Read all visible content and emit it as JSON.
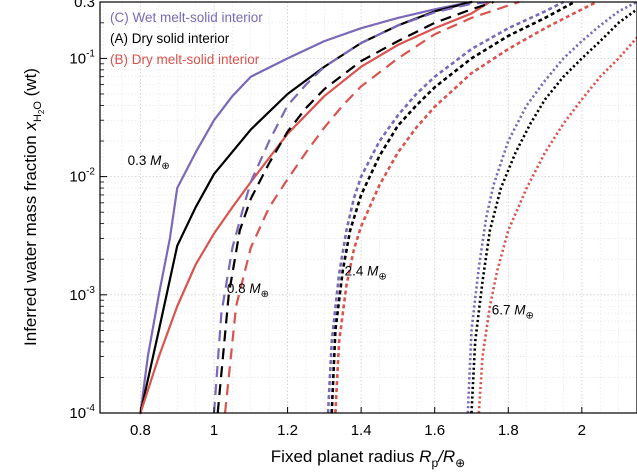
{
  "chart_data": {
    "type": "line",
    "title": "",
    "xlabel": {
      "prefix": "Fixed planet radius ",
      "sym": "R",
      "sub": "p",
      "post": "/R",
      "sub2": "⊕"
    },
    "ylabel": {
      "prefix": "Inferred water mass fraction ",
      "sym": "x",
      "sub": "H",
      "sub_digit": "2",
      "sub_tail": "O",
      "post": " (wt)"
    },
    "xlim": [
      0.69,
      2.15
    ],
    "ylim": [
      0.0001,
      0.3
    ],
    "yscale": "log",
    "grid": true,
    "xticks": [
      {
        "v": 0.8,
        "label": "0.8"
      },
      {
        "v": 1.0,
        "label": "1"
      },
      {
        "v": 1.2,
        "label": "1.2"
      },
      {
        "v": 1.4,
        "label": "1.4"
      },
      {
        "v": 1.6,
        "label": "1.6"
      },
      {
        "v": 1.8,
        "label": "1.8"
      },
      {
        "v": 2.0,
        "label": "2"
      }
    ],
    "yticks": [
      {
        "v": 0.0001,
        "base": "10",
        "exp": "-4"
      },
      {
        "v": 0.001,
        "base": "10",
        "exp": "-3"
      },
      {
        "v": 0.01,
        "base": "10",
        "exp": "-2"
      },
      {
        "v": 0.1,
        "base": "10",
        "exp": "-1"
      },
      {
        "v": 0.3,
        "base": "0.3",
        "exp": ""
      }
    ],
    "legend": {
      "placement": "top-left",
      "entries": [
        {
          "label": "(C) Wet melt-solid interior",
          "color": "#7b68b8"
        },
        {
          "label": "(A) Dry solid interior",
          "color": "#000000"
        },
        {
          "label": "(B) Dry melt-solid interior",
          "color": "#d9544f"
        }
      ]
    },
    "annotations": [
      {
        "num": "0.3 ",
        "sym": "M",
        "sub": "⊕",
        "x": 0.765,
        "y": 0.0125
      },
      {
        "num": "0.8 ",
        "sym": "M",
        "sub": "⊕",
        "x": 1.035,
        "y": 0.00104
      },
      {
        "num": "2.4 ",
        "sym": "M",
        "sub": "⊕",
        "x": 1.355,
        "y": 0.00145
      },
      {
        "num": "6.7 ",
        "sym": "M",
        "sub": "⊕",
        "x": 1.755,
        "y": 0.00068
      }
    ],
    "series": [
      {
        "interior": "wet",
        "mass": "0.3",
        "style": "solid",
        "color": "#7b68b8",
        "x": [
          0.8,
          0.82,
          0.85,
          0.88,
          0.9,
          0.95,
          1.0,
          1.05,
          1.1,
          1.2,
          1.3,
          1.4,
          1.5,
          1.6,
          1.65,
          1.7
        ],
        "y": [
          0.0001,
          0.0003,
          0.001,
          0.003,
          0.008,
          0.016,
          0.03,
          0.048,
          0.07,
          0.1,
          0.14,
          0.18,
          0.22,
          0.26,
          0.28,
          0.3
        ]
      },
      {
        "interior": "dry solid",
        "mass": "0.3",
        "style": "solid",
        "color": "#000000",
        "x": [
          0.8,
          0.85,
          0.9,
          0.95,
          1.0,
          1.1,
          1.2,
          1.3,
          1.4,
          1.5,
          1.6,
          1.7
        ],
        "y": [
          0.0001,
          0.0005,
          0.0026,
          0.0055,
          0.0105,
          0.025,
          0.05,
          0.085,
          0.135,
          0.19,
          0.25,
          0.3
        ]
      },
      {
        "interior": "dry melt-solid",
        "mass": "0.3",
        "style": "solid",
        "color": "#d9544f",
        "x": [
          0.8,
          0.85,
          0.9,
          0.95,
          1.0,
          1.05,
          1.1,
          1.2,
          1.3,
          1.4,
          1.5,
          1.6,
          1.7,
          1.75
        ],
        "y": [
          0.0001,
          0.0003,
          0.0008,
          0.0018,
          0.0033,
          0.0055,
          0.009,
          0.023,
          0.048,
          0.085,
          0.13,
          0.18,
          0.24,
          0.3
        ]
      },
      {
        "interior": "wet",
        "mass": "0.8",
        "style": "dashed",
        "color": "#7b68b8",
        "x": [
          1.0,
          1.02,
          1.05,
          1.08,
          1.1,
          1.15,
          1.2,
          1.25,
          1.3,
          1.4,
          1.5,
          1.6,
          1.7,
          1.75
        ],
        "y": [
          0.0001,
          0.0007,
          0.0025,
          0.0055,
          0.009,
          0.02,
          0.04,
          0.06,
          0.085,
          0.135,
          0.19,
          0.245,
          0.29,
          0.3
        ]
      },
      {
        "interior": "dry solid",
        "mass": "0.8",
        "style": "dashed",
        "color": "#000000",
        "x": [
          1.01,
          1.04,
          1.07,
          1.1,
          1.15,
          1.2,
          1.25,
          1.3,
          1.4,
          1.5,
          1.6,
          1.7,
          1.76
        ],
        "y": [
          0.0001,
          0.001,
          0.0035,
          0.0065,
          0.013,
          0.024,
          0.038,
          0.055,
          0.095,
          0.14,
          0.2,
          0.26,
          0.3
        ]
      },
      {
        "interior": "dry melt-solid",
        "mass": "0.8",
        "style": "dashed",
        "color": "#d9544f",
        "x": [
          1.03,
          1.06,
          1.1,
          1.15,
          1.2,
          1.25,
          1.3,
          1.35,
          1.4,
          1.5,
          1.6,
          1.7,
          1.8,
          1.83
        ],
        "y": [
          0.0001,
          0.0008,
          0.0025,
          0.0055,
          0.0095,
          0.016,
          0.026,
          0.04,
          0.058,
          0.1,
          0.16,
          0.22,
          0.28,
          0.3
        ]
      },
      {
        "interior": "wet",
        "mass": "2.4",
        "style": "dotted",
        "color": "#7b68b8",
        "x": [
          1.31,
          1.32,
          1.34,
          1.36,
          1.38,
          1.4,
          1.45,
          1.5,
          1.55,
          1.6,
          1.7,
          1.8,
          1.9,
          1.95
        ],
        "y": [
          0.0001,
          0.0004,
          0.0015,
          0.0035,
          0.0065,
          0.01,
          0.02,
          0.033,
          0.05,
          0.07,
          0.12,
          0.18,
          0.25,
          0.3
        ]
      },
      {
        "interior": "dry solid",
        "mass": "2.4",
        "style": "dotted",
        "color": "#000000",
        "x": [
          1.32,
          1.33,
          1.35,
          1.37,
          1.4,
          1.45,
          1.5,
          1.55,
          1.6,
          1.7,
          1.8,
          1.9,
          1.98
        ],
        "y": [
          0.0001,
          0.0005,
          0.0016,
          0.0035,
          0.007,
          0.015,
          0.027,
          0.04,
          0.057,
          0.1,
          0.155,
          0.22,
          0.3
        ]
      },
      {
        "interior": "dry melt-solid",
        "mass": "2.4",
        "style": "dotted",
        "color": "#d9544f",
        "x": [
          1.33,
          1.34,
          1.36,
          1.38,
          1.4,
          1.45,
          1.5,
          1.55,
          1.6,
          1.7,
          1.8,
          1.9,
          2.0,
          2.04
        ],
        "y": [
          0.0001,
          0.0004,
          0.0012,
          0.0024,
          0.0038,
          0.0085,
          0.016,
          0.026,
          0.039,
          0.075,
          0.12,
          0.18,
          0.26,
          0.3
        ]
      },
      {
        "interior": "wet",
        "mass": "6.7",
        "style": "dotted-fine",
        "color": "#7b68b8",
        "x": [
          1.69,
          1.7,
          1.72,
          1.74,
          1.76,
          1.8,
          1.85,
          1.9,
          1.95,
          2.0,
          2.05,
          2.1,
          2.15
        ],
        "y": [
          0.0001,
          0.0005,
          0.0017,
          0.0045,
          0.0085,
          0.02,
          0.04,
          0.065,
          0.1,
          0.14,
          0.19,
          0.25,
          0.3
        ]
      },
      {
        "interior": "dry solid",
        "mass": "6.7",
        "style": "dotted-fine",
        "color": "#000000",
        "x": [
          1.7,
          1.71,
          1.73,
          1.75,
          1.78,
          1.82,
          1.86,
          1.9,
          1.95,
          2.0,
          2.05,
          2.1,
          2.15
        ],
        "y": [
          0.0001,
          0.0004,
          0.0013,
          0.0035,
          0.008,
          0.016,
          0.028,
          0.045,
          0.07,
          0.1,
          0.14,
          0.2,
          0.26
        ]
      },
      {
        "interior": "dry melt-solid",
        "mass": "6.7",
        "style": "dotted-fine",
        "color": "#d9544f",
        "x": [
          1.72,
          1.73,
          1.75,
          1.77,
          1.8,
          1.85,
          1.9,
          1.95,
          2.0,
          2.05,
          2.1,
          2.15
        ],
        "y": [
          0.0001,
          0.0003,
          0.0008,
          0.0016,
          0.0035,
          0.008,
          0.016,
          0.028,
          0.045,
          0.07,
          0.1,
          0.15
        ]
      }
    ]
  }
}
